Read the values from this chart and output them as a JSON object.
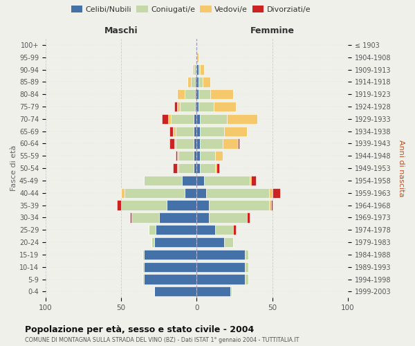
{
  "age_groups_bottom_to_top": [
    "0-4",
    "5-9",
    "10-14",
    "15-19",
    "20-24",
    "25-29",
    "30-34",
    "35-39",
    "40-44",
    "45-49",
    "50-54",
    "55-59",
    "60-64",
    "65-69",
    "70-74",
    "75-79",
    "80-84",
    "85-89",
    "90-94",
    "95-99",
    "100+"
  ],
  "birth_years_bottom_to_top": [
    "1999-2003",
    "1994-1998",
    "1989-1993",
    "1984-1988",
    "1979-1983",
    "1974-1978",
    "1969-1973",
    "1964-1968",
    "1959-1963",
    "1954-1958",
    "1949-1953",
    "1944-1948",
    "1939-1943",
    "1934-1938",
    "1929-1933",
    "1924-1928",
    "1919-1923",
    "1914-1918",
    "1909-1913",
    "1904-1908",
    "≤ 1903"
  ],
  "maschi_celibi": [
    28,
    35,
    35,
    35,
    28,
    27,
    25,
    20,
    8,
    10,
    2,
    2,
    2,
    2,
    2,
    1,
    1,
    1,
    0,
    0,
    0
  ],
  "maschi_coniugati": [
    0,
    1,
    1,
    1,
    2,
    5,
    18,
    30,
    40,
    25,
    10,
    10,
    12,
    12,
    15,
    10,
    7,
    3,
    2,
    0,
    0
  ],
  "maschi_vedovi": [
    0,
    0,
    0,
    0,
    0,
    0,
    0,
    0,
    2,
    0,
    1,
    1,
    1,
    2,
    2,
    2,
    5,
    2,
    1,
    0,
    0
  ],
  "maschi_divorziati": [
    0,
    0,
    0,
    0,
    0,
    0,
    1,
    3,
    0,
    0,
    3,
    1,
    3,
    2,
    4,
    2,
    0,
    0,
    0,
    0,
    0
  ],
  "femmine_nubili": [
    22,
    32,
    32,
    32,
    18,
    12,
    8,
    8,
    6,
    5,
    2,
    2,
    2,
    2,
    2,
    1,
    1,
    1,
    1,
    0,
    0
  ],
  "femmine_coniugate": [
    1,
    2,
    2,
    2,
    6,
    12,
    25,
    40,
    42,
    30,
    10,
    10,
    15,
    16,
    18,
    10,
    8,
    3,
    1,
    0,
    0
  ],
  "femmine_vedove": [
    0,
    0,
    0,
    0,
    0,
    0,
    0,
    1,
    2,
    1,
    1,
    5,
    10,
    15,
    20,
    15,
    15,
    5,
    3,
    1,
    0
  ],
  "femmine_divorziate": [
    0,
    0,
    0,
    0,
    0,
    2,
    2,
    1,
    5,
    3,
    2,
    0,
    1,
    0,
    0,
    0,
    0,
    0,
    0,
    0,
    0
  ],
  "colors": {
    "celibi": "#4472a8",
    "coniugati": "#c5d9a8",
    "vedovi": "#f5c96b",
    "divorziati": "#cc2222"
  },
  "title": "Popolazione per età, sesso e stato civile - 2004",
  "subtitle": "COMUNE DI MONTAGNA SULLA STRADA DEL VINO (BZ) - Dati ISTAT 1° gennaio 2004 - TUTTITALIA.IT",
  "header_left": "Maschi",
  "header_right": "Femmine",
  "ylabel_left": "Fasce di età",
  "ylabel_right": "Anni di nascita",
  "xlim": 100,
  "legend_labels": [
    "Celibi/Nubili",
    "Coniugati/e",
    "Vedovi/e",
    "Divorziati/e"
  ],
  "bg_color": "#f0f0eb",
  "grid_color": "#cccccc"
}
